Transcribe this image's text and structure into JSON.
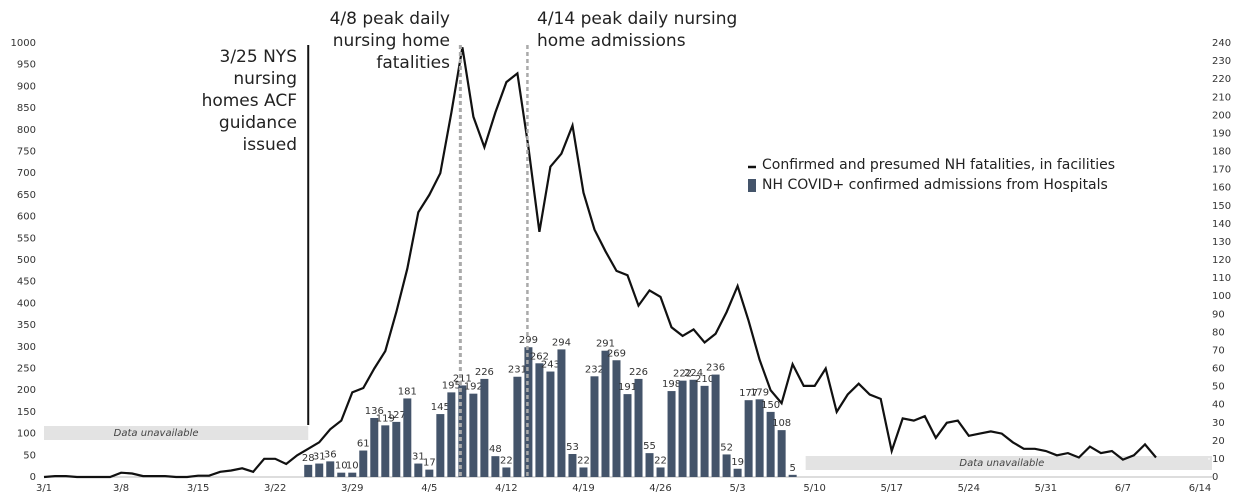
{
  "chart_data": {
    "type": "combo",
    "categories": [
      "3/1",
      null,
      null,
      null,
      null,
      null,
      null,
      "3/8",
      null,
      null,
      null,
      null,
      null,
      null,
      "3/15",
      null,
      null,
      null,
      null,
      null,
      null,
      "3/22",
      null,
      null,
      null,
      null,
      null,
      null,
      "3/29",
      null,
      null,
      null,
      null,
      null,
      null,
      "4/5",
      null,
      null,
      null,
      null,
      null,
      null,
      "4/12",
      null,
      null,
      null,
      null,
      null,
      null,
      "4/19",
      null,
      null,
      null,
      null,
      null,
      null,
      "4/26",
      null,
      null,
      null,
      null,
      null,
      null,
      "5/3",
      null,
      null,
      null,
      null,
      null,
      null,
      "5/10",
      null,
      null,
      null,
      null,
      null,
      null,
      "5/17",
      null,
      null,
      null,
      null,
      null,
      null,
      "5/24",
      null,
      null,
      null,
      null,
      null,
      null,
      "5/31",
      null,
      null,
      null,
      null,
      null,
      null,
      "6/7",
      null,
      null,
      null,
      null,
      null,
      null,
      "6/14"
    ],
    "series": [
      {
        "name": "Confirmed and presumed NH fatalities, in facilities",
        "type": "line",
        "color": "#111111",
        "values": [
          0,
          2,
          2,
          0,
          0,
          0,
          0,
          10,
          8,
          2,
          2,
          2,
          0,
          0,
          3,
          3,
          12,
          15,
          20,
          12,
          42,
          42,
          30,
          50,
          65,
          80,
          110,
          130,
          195,
          205,
          250,
          290,
          380,
          480,
          610,
          650,
          700,
          840,
          990,
          830,
          760,
          840,
          910,
          930,
          760,
          565,
          715,
          745,
          810,
          655,
          570,
          520,
          475,
          465,
          395,
          430,
          415,
          345,
          325,
          340,
          310,
          330,
          380,
          440,
          360,
          270,
          200,
          170,
          260,
          210,
          210,
          250,
          150,
          190,
          215,
          190,
          180,
          60,
          135,
          130,
          140,
          90,
          125,
          130,
          95,
          100,
          105,
          100,
          80,
          65,
          65,
          60,
          50,
          55,
          45,
          70,
          55,
          60,
          40,
          50,
          75,
          45,
          null,
          null,
          null,
          null
        ]
      },
      {
        "name": "NH COVID+ confirmed admissions from Hospitals",
        "type": "bar",
        "color": "#44546a",
        "values": [
          null,
          null,
          null,
          null,
          null,
          null,
          null,
          null,
          null,
          null,
          null,
          null,
          null,
          null,
          null,
          null,
          null,
          null,
          null,
          null,
          null,
          null,
          null,
          null,
          28,
          31,
          36,
          10,
          10,
          61,
          136,
          119,
          127,
          181,
          31,
          17,
          145,
          195,
          211,
          192,
          226,
          48,
          22,
          231,
          299,
          262,
          243,
          294,
          53,
          22,
          232,
          291,
          269,
          191,
          226,
          55,
          22,
          198,
          222,
          224,
          210,
          236,
          52,
          19,
          177,
          179,
          150,
          108,
          5,
          null,
          null,
          null,
          null,
          null,
          null,
          null,
          null,
          null,
          null,
          null,
          null,
          null,
          null,
          null,
          null,
          null,
          null,
          null,
          null,
          null,
          null,
          null,
          null,
          null,
          null,
          null,
          null,
          null,
          null,
          null,
          null,
          null,
          null,
          null,
          null,
          null
        ]
      }
    ],
    "ylim": [
      0,
      1000
    ],
    "yticks": [
      0,
      50,
      100,
      150,
      200,
      250,
      300,
      350,
      400,
      450,
      500,
      550,
      600,
      650,
      700,
      750,
      800,
      850,
      900,
      950,
      1000
    ],
    "y2lim": [
      0,
      240
    ],
    "y2ticks": [
      0,
      10,
      20,
      30,
      40,
      50,
      60,
      70,
      80,
      90,
      100,
      110,
      120,
      130,
      140,
      150,
      160,
      170,
      180,
      190,
      200,
      210,
      220,
      230,
      240
    ],
    "legend": "upper right",
    "annotations": [
      {
        "lines": [
          "3/25 NYS",
          "nursing",
          "homes ACF",
          "guidance",
          "issued"
        ]
      },
      {
        "lines": [
          "4/8 peak daily",
          "nursing home",
          "fatalities"
        ]
      },
      {
        "lines": [
          "4/14 peak daily nursing",
          "home admissions"
        ]
      },
      {
        "lines": [
          "Data unavailable"
        ]
      },
      {
        "lines": [
          "Data unavailable"
        ]
      }
    ]
  }
}
